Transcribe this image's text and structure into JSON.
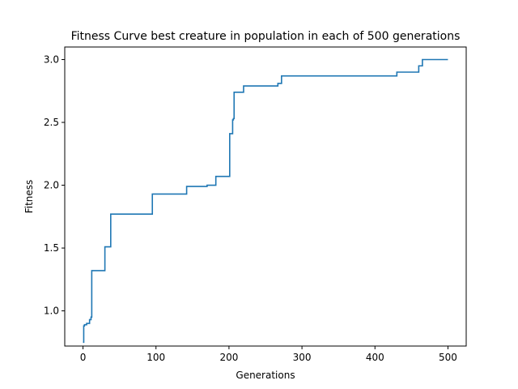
{
  "chart_data": {
    "type": "line",
    "title": "Fitness Curve best creature in population in each of 500 generations",
    "xlabel": "Generations",
    "ylabel": "Fitness",
    "xlim": [
      -25,
      525
    ],
    "ylim": [
      0.72,
      3.1
    ],
    "xticks": [
      0,
      100,
      200,
      300,
      400,
      500
    ],
    "yticks": [
      1.0,
      1.5,
      2.0,
      2.5,
      3.0
    ],
    "ytick_labels": [
      "1.0",
      "1.5",
      "2.0",
      "2.5",
      "3.0"
    ],
    "grid": false,
    "series": [
      {
        "color": "#1f77b4",
        "step": true,
        "x": [
          0,
          1,
          2,
          5,
          9,
          11,
          12,
          30,
          37,
          38,
          95,
          142,
          170,
          182,
          198,
          201,
          205,
          206,
          207,
          220,
          267,
          272,
          430,
          460,
          465,
          500
        ],
        "y": [
          0.75,
          0.88,
          0.89,
          0.9,
          0.93,
          0.95,
          1.32,
          1.51,
          1.51,
          1.77,
          1.93,
          1.99,
          2.0,
          2.07,
          2.07,
          2.41,
          2.52,
          2.53,
          2.74,
          2.79,
          2.81,
          2.87,
          2.9,
          2.95,
          3.0,
          3.0
        ]
      }
    ]
  }
}
